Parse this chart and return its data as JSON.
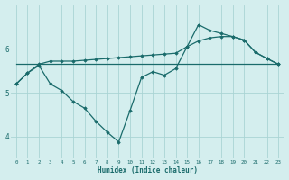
{
  "xlabel": "Humidex (Indice chaleur)",
  "bg_color": "#d4eeee",
  "grid_color": "#aad4d4",
  "line_color": "#1a6b6b",
  "xlim": [
    -0.5,
    23.5
  ],
  "ylim": [
    3.5,
    7.0
  ],
  "yticks": [
    4,
    5,
    6
  ],
  "xticks": [
    0,
    1,
    2,
    3,
    4,
    5,
    6,
    7,
    8,
    9,
    10,
    11,
    12,
    13,
    14,
    15,
    16,
    17,
    18,
    19,
    20,
    21,
    22,
    23
  ],
  "s1y": [
    5.2,
    5.45,
    5.65,
    5.72,
    5.72,
    5.72,
    5.74,
    5.76,
    5.78,
    5.8,
    5.82,
    5.84,
    5.86,
    5.88,
    5.9,
    6.05,
    6.18,
    6.25,
    6.28,
    6.28,
    6.2,
    5.92,
    5.78,
    5.65
  ],
  "s2y": [
    5.65,
    5.65,
    5.65,
    5.65,
    5.65,
    5.65,
    5.65,
    5.65,
    5.65,
    5.65,
    5.65,
    5.65,
    5.65,
    5.65,
    5.65,
    5.65,
    5.65,
    5.65,
    5.65,
    5.65,
    5.65,
    5.65,
    5.65,
    5.65
  ],
  "s3y": [
    5.2,
    5.45,
    5.62,
    5.2,
    5.05,
    4.8,
    4.65,
    4.35,
    4.1,
    3.88,
    4.6,
    5.35,
    5.48,
    5.4,
    5.55,
    6.05,
    6.55,
    6.42,
    6.35,
    6.28,
    6.2,
    5.92,
    5.78,
    5.65
  ]
}
